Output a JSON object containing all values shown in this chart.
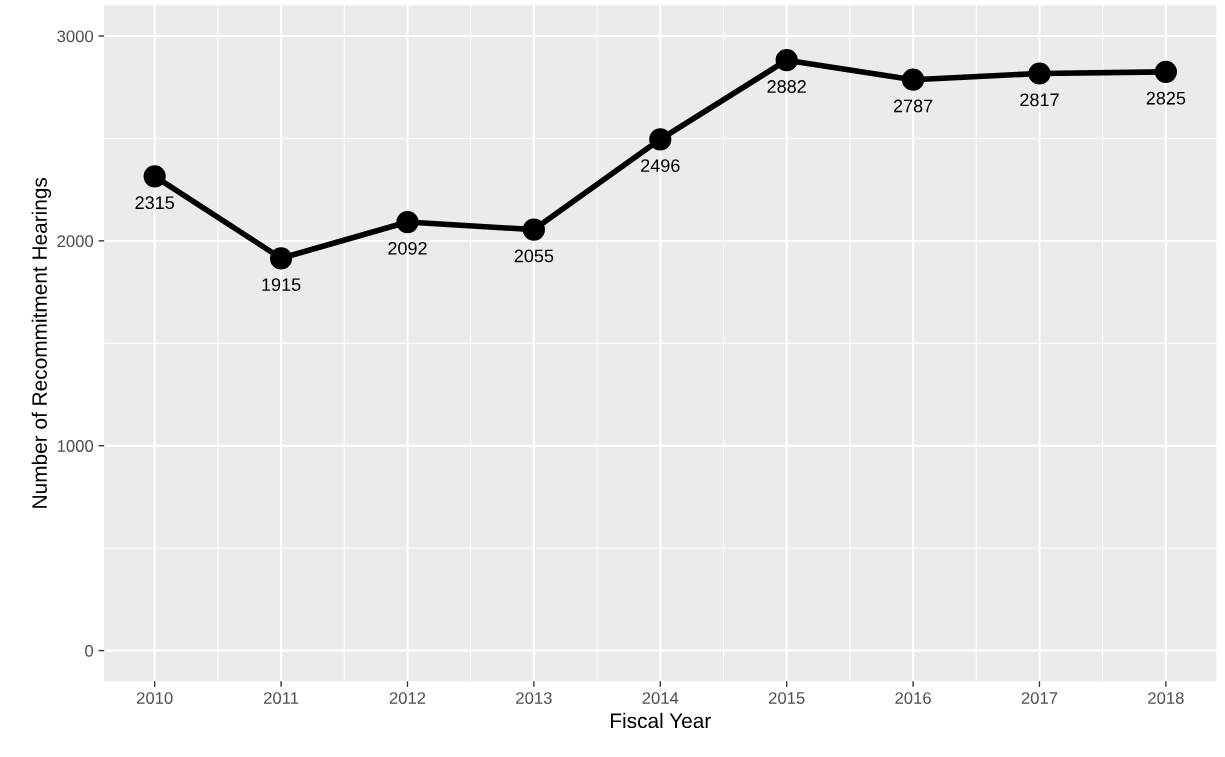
{
  "chart_data": {
    "type": "line",
    "xlabel": "Fiscal Year",
    "ylabel": "Number of Recommitment Hearings",
    "x": [
      2010,
      2011,
      2012,
      2013,
      2014,
      2015,
      2016,
      2017,
      2018
    ],
    "series": [
      {
        "color": "#000000",
        "values": [
          2315,
          1915,
          2092,
          2055,
          2496,
          2882,
          2787,
          2817,
          2825
        ]
      }
    ],
    "data_labels": true,
    "marker": "circle",
    "line_style": "solid",
    "grid": true,
    "xlim": [
      2009.6,
      2018.4
    ],
    "xticks": [
      2010,
      2011,
      2012,
      2013,
      2014,
      2015,
      2016,
      2017,
      2018
    ],
    "ylim": [
      -150,
      3150
    ],
    "yticks": [
      0,
      1000,
      2000,
      3000
    ]
  }
}
